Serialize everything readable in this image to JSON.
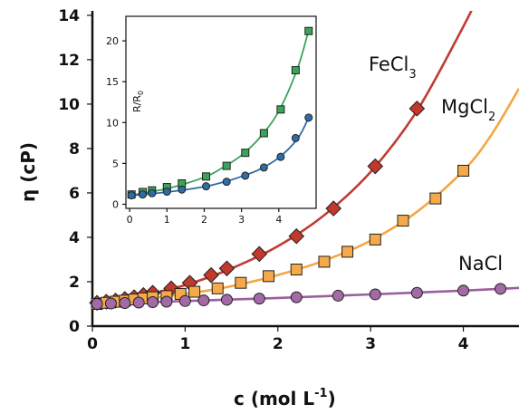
{
  "chart_data": [
    {
      "type": "scatter",
      "title": "",
      "xlabel": "c (mol L",
      "xlabel_sup": "-1",
      "xlabel_close": ")",
      "ylabel": "η (cP)",
      "xlim": [
        0,
        4.6
      ],
      "ylim": [
        0,
        14.2
      ],
      "x_ticks": [
        "0",
        "1",
        "2",
        "3",
        "4"
      ],
      "y_ticks": [
        "0",
        "2",
        "4",
        "6",
        "8",
        "10",
        "12",
        "14"
      ],
      "grid": false,
      "series": [
        {
          "name": "FeCl",
          "name_sub": "3",
          "marker": "diamond",
          "color": "#c0392b",
          "line_color": "#c23b35",
          "x": [
            0.05,
            0.15,
            0.25,
            0.35,
            0.45,
            0.55,
            0.65,
            0.85,
            1.05,
            1.28,
            1.45,
            1.8,
            2.2,
            2.6,
            3.05,
            3.5
          ],
          "y": [
            1.05,
            1.1,
            1.15,
            1.22,
            1.3,
            1.4,
            1.5,
            1.7,
            1.95,
            2.3,
            2.6,
            3.25,
            4.05,
            5.3,
            7.2,
            9.8
          ],
          "curve_x": [
            0,
            0.5,
            1.0,
            1.5,
            2.0,
            2.5,
            3.0,
            3.5,
            4.0,
            4.2
          ],
          "curve_y": [
            1.0,
            1.35,
            1.85,
            2.6,
            3.6,
            5.0,
            6.95,
            9.7,
            13.5,
            15.2
          ]
        },
        {
          "name": "MgCl",
          "name_sub": "2",
          "marker": "square",
          "color": "#f5a94a",
          "line_color": "#f5a640",
          "x": [
            0.05,
            0.15,
            0.25,
            0.35,
            0.45,
            0.55,
            0.65,
            0.8,
            0.95,
            1.1,
            1.35,
            1.6,
            1.9,
            2.2,
            2.5,
            2.75,
            3.05,
            3.35,
            3.7,
            4.0
          ],
          "y": [
            1.0,
            1.05,
            1.1,
            1.15,
            1.2,
            1.25,
            1.3,
            1.35,
            1.45,
            1.55,
            1.7,
            1.95,
            2.25,
            2.55,
            2.9,
            3.35,
            3.9,
            4.75,
            5.75,
            7.0
          ],
          "curve_x": [
            0,
            0.5,
            1.0,
            1.5,
            2.0,
            2.5,
            3.0,
            3.5,
            4.0,
            4.3,
            4.6
          ],
          "curve_y": [
            1.0,
            1.2,
            1.45,
            1.8,
            2.3,
            2.95,
            3.85,
            5.15,
            7.0,
            8.6,
            10.7
          ]
        },
        {
          "name": "NaCl",
          "name_sub": "",
          "marker": "circle",
          "color": "#a36aa6",
          "line_color": "#9b5f9e",
          "x": [
            0.05,
            0.2,
            0.35,
            0.5,
            0.65,
            0.8,
            1.0,
            1.2,
            1.45,
            1.8,
            2.2,
            2.65,
            3.05,
            3.5,
            4.0,
            4.4
          ],
          "y": [
            1.0,
            1.02,
            1.04,
            1.06,
            1.08,
            1.1,
            1.13,
            1.16,
            1.19,
            1.24,
            1.3,
            1.37,
            1.43,
            1.5,
            1.6,
            1.68
          ],
          "curve_x": [
            0,
            1.0,
            2.0,
            3.0,
            4.0,
            4.6
          ],
          "curve_y": [
            1.0,
            1.13,
            1.27,
            1.43,
            1.6,
            1.72
          ]
        }
      ]
    },
    {
      "type": "scatter",
      "title": "",
      "xlabel": "",
      "ylabel": "R/R",
      "ylabel_sub": "0",
      "xlim": [
        -0.1,
        5.0
      ],
      "ylim": [
        -0.5,
        23
      ],
      "x_ticks": [
        "0",
        "1",
        "2",
        "3",
        "4"
      ],
      "y_ticks": [
        "0",
        "5",
        "10",
        "15",
        "20"
      ],
      "grid": false,
      "series": [
        {
          "name": "",
          "marker": "square",
          "color": "#3aa55a",
          "line_color": "#3aa55a",
          "x": [
            0.05,
            0.35,
            0.6,
            1.0,
            1.4,
            2.05,
            2.6,
            3.1,
            3.6,
            4.05,
            4.45,
            4.8
          ],
          "y": [
            1.2,
            1.5,
            1.7,
            2.1,
            2.55,
            3.4,
            4.7,
            6.3,
            8.7,
            11.6,
            16.4,
            21.2
          ],
          "curve_x": [
            0,
            1,
            2,
            2.5,
            3,
            3.5,
            4,
            4.5,
            4.8
          ],
          "curve_y": [
            1.1,
            1.9,
            3.3,
            4.5,
            6.0,
            8.2,
            11.4,
            16.6,
            21.3
          ]
        },
        {
          "name": "",
          "marker": "circle",
          "color": "#2e6da4",
          "line_color": "#2e6da4",
          "x": [
            0.05,
            0.35,
            0.6,
            1.0,
            1.4,
            2.05,
            2.6,
            3.1,
            3.6,
            4.05,
            4.45,
            4.8
          ],
          "y": [
            1.1,
            1.2,
            1.35,
            1.55,
            1.8,
            2.2,
            2.75,
            3.5,
            4.5,
            5.8,
            8.1,
            10.6
          ],
          "curve_x": [
            0,
            1,
            2,
            2.5,
            3,
            3.5,
            4,
            4.5,
            4.8
          ],
          "curve_y": [
            1.05,
            1.5,
            2.15,
            2.7,
            3.4,
            4.3,
            5.7,
            8.0,
            10.6
          ]
        }
      ]
    }
  ]
}
